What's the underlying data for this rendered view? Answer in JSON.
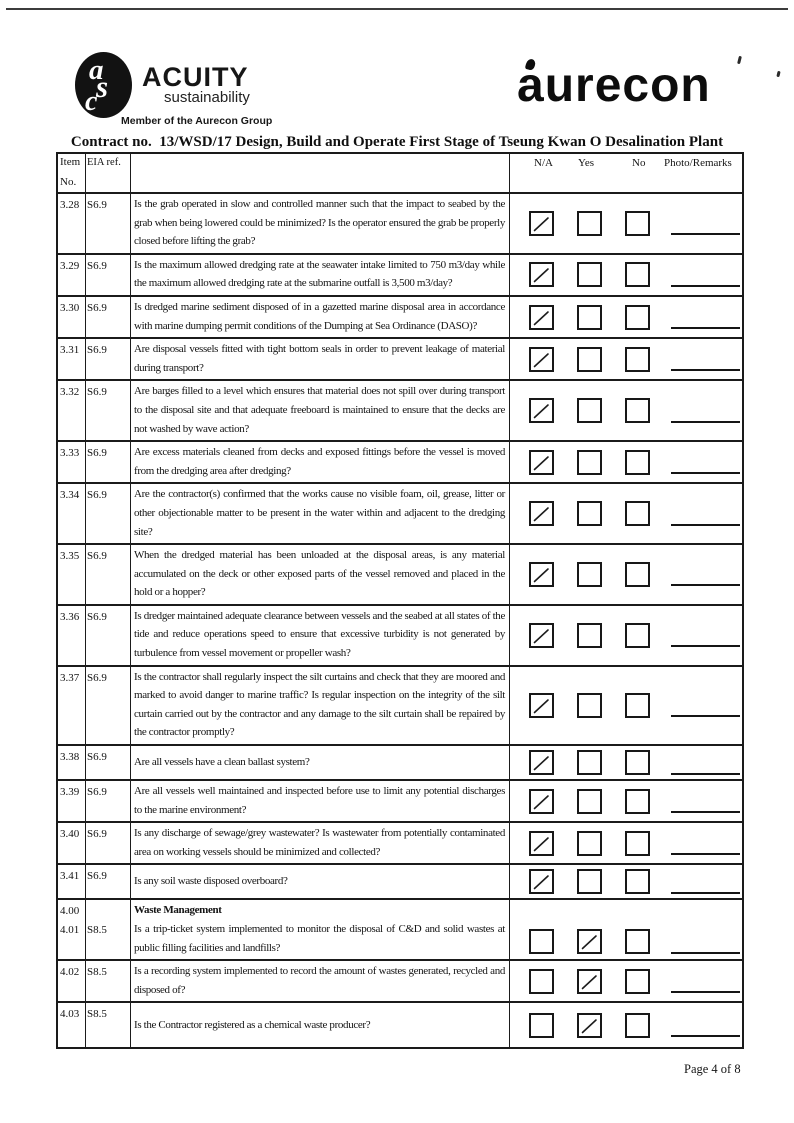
{
  "header": {
    "acuity": {
      "monogram": [
        "a",
        "s",
        "c"
      ],
      "name": "ACUITY",
      "subtitle": "sustainability",
      "tagline": "Member of the Aurecon Group"
    },
    "brand": "aurecon"
  },
  "title": "Contract no.  13/WSD/17 Design, Build and Operate First Stage of Tseung Kwan O Desalination Plant",
  "footer": "Page 4 of 8",
  "table": {
    "head": {
      "item1": "Item",
      "item2": "No.",
      "eia": "EIA ref.",
      "na": "N/A",
      "yes": "Yes",
      "no": "No",
      "remarks": "Photo/Remarks"
    },
    "rows": [
      {
        "item": "3.28",
        "eia": "S6.9",
        "question": "Is the grab operated in slow and controlled manner such that the impact to seabed by the grab when being lowered could be minimized? Is the operator ensured the grab be properly closed before lifting the grab?",
        "checked": "na"
      },
      {
        "item": "3.29",
        "eia": "S6.9",
        "question": "Is the maximum allowed dredging rate at the seawater intake limited to 750 m3/day while the maximum allowed dredging rate at the submarine outfall is 3,500 m3/day?",
        "checked": "na"
      },
      {
        "item": "3.30",
        "eia": "S6.9",
        "question": "Is dredged marine sediment disposed of in a gazetted marine disposal area in accordance with marine dumping permit conditions of the Dumping at Sea Ordinance (DASO)?",
        "checked": "na"
      },
      {
        "item": "3.31",
        "eia": "S6.9",
        "question": "Are disposal vessels fitted with tight bottom seals in order to prevent leakage of material during transport?",
        "checked": "na"
      },
      {
        "item": "3.32",
        "eia": "S6.9",
        "question": "Are barges filled to a level which ensures that material does not spill over during transport to the disposal site and that adequate freeboard is maintained to ensure that the decks are not washed by wave action?",
        "checked": "na"
      },
      {
        "item": "3.33",
        "eia": "S6.9",
        "question": "Are excess materials cleaned from decks and exposed fittings before the vessel is moved from the dredging area after dredging?",
        "checked": "na"
      },
      {
        "item": "3.34",
        "eia": "S6.9",
        "question": "Are the contractor(s) confirmed that the works cause no visible foam, oil, grease, litter or other objectionable matter to be present in the water within and adjacent to the dredging site?",
        "checked": "na"
      },
      {
        "item": "3.35",
        "eia": "S6.9",
        "question": "When the dredged material has been unloaded at the disposal areas, is any material accumulated on the deck or other exposed parts of the vessel removed and placed in the hold or a hopper?",
        "checked": "na"
      },
      {
        "item": "3.36",
        "eia": "S6.9",
        "question": "Is dredger maintained adequate clearance between vessels and the seabed at all states of the tide and reduce operations speed to ensure that excessive turbidity is not generated by turbulence from vessel movement or propeller wash?",
        "checked": "na"
      },
      {
        "item": "3.37",
        "eia": "S6.9",
        "question": "Is the contractor shall regularly inspect the silt curtains and check that they are moored and marked to avoid danger to marine traffic? Is regular inspection on the integrity of the silt curtain carried out by the contractor and any damage to the silt curtain shall be repaired by the contractor promptly?",
        "checked": "na"
      },
      {
        "item": "3.38",
        "eia": "S6.9",
        "question": "Are all vessels have a clean ballast system?",
        "checked": "na"
      },
      {
        "item": "3.39",
        "eia": "S6.9",
        "question": "Are all vessels well maintained and inspected before use to limit any potential discharges to the marine environment?",
        "checked": "na"
      },
      {
        "item": "3.40",
        "eia": "S6.9",
        "question": "Is any discharge of sewage/grey wastewater? Is wastewater from potentially contaminated area on working vessels should be minimized and collected?",
        "checked": "na"
      },
      {
        "item": "3.41",
        "eia": "S6.9",
        "question": "Is any soil waste disposed overboard?",
        "checked": "na"
      },
      {
        "item": "4.00",
        "section_title": "Waste Management",
        "item2": "4.01",
        "eia2": "S8.5",
        "question": "Is a trip-ticket system implemented to monitor the disposal of C&D and solid wastes at public filling facilities and landfills?",
        "checked": "yes"
      },
      {
        "item": "4.02",
        "eia": "S8.5",
        "question": "Is a recording system implemented to record the amount of wastes generated, recycled and disposed of?",
        "checked": "yes"
      },
      {
        "item": "4.03",
        "eia": "S8.5",
        "question": "Is the Contractor registered as a chemical waste producer?",
        "checked": "yes"
      }
    ]
  }
}
